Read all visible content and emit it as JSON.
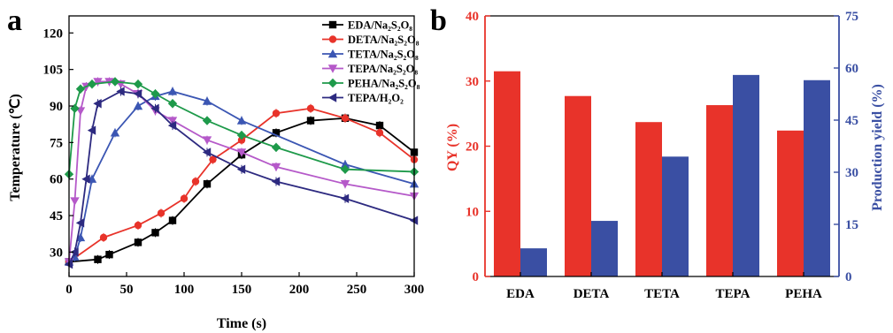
{
  "panels": {
    "a": "a",
    "b": "b"
  },
  "chart_data": [
    {
      "type": "line",
      "panel": "a",
      "xlabel": "Time (s)",
      "ylabel": "Temperature (℃)",
      "xlim": [
        0,
        300
      ],
      "ylim": [
        20,
        127
      ],
      "xticks": [
        "0",
        "50",
        "100",
        "150",
        "200",
        "250",
        "300"
      ],
      "yticks": [
        "30",
        "45",
        "60",
        "75",
        "90",
        "105",
        "120"
      ],
      "legend_position": "top-right",
      "series": [
        {
          "name": "EDA/Na₂S₂O₈",
          "color": "#000000",
          "marker": "square",
          "x": [
            0,
            25,
            35,
            60,
            75,
            90,
            120,
            150,
            180,
            210,
            240,
            270,
            300
          ],
          "y": [
            26,
            27,
            29,
            34,
            38,
            43,
            58,
            70,
            79,
            84,
            85,
            82,
            71
          ]
        },
        {
          "name": "DETA/Na₂S₂O₈",
          "color": "#e8332a",
          "marker": "circle",
          "x": [
            0,
            30,
            60,
            80,
            100,
            110,
            125,
            150,
            180,
            210,
            240,
            270,
            300
          ],
          "y": [
            26,
            36,
            41,
            46,
            52,
            59,
            68,
            76,
            87,
            89,
            85,
            79,
            68
          ]
        },
        {
          "name": "TETA/Na₂S₂O₈",
          "color": "#3b56b3",
          "marker": "triangle-up",
          "x": [
            0,
            5,
            10,
            20,
            40,
            60,
            75,
            90,
            120,
            150,
            240,
            300
          ],
          "y": [
            26,
            28,
            36,
            60,
            79,
            90,
            94,
            96,
            92,
            84,
            66,
            58
          ]
        },
        {
          "name": "TEPA/Na₂S₂O₈",
          "color": "#b559c9",
          "marker": "triangle-down",
          "x": [
            0,
            5,
            10,
            15,
            25,
            35,
            45,
            60,
            75,
            90,
            120,
            150,
            180,
            240,
            300
          ],
          "y": [
            26,
            51,
            88,
            98,
            100,
            100,
            99,
            95,
            88,
            84,
            76,
            71,
            65,
            58,
            53
          ]
        },
        {
          "name": "PEHA/Na₂S₂O₈",
          "color": "#1e9a4a",
          "marker": "diamond",
          "x": [
            0,
            5,
            10,
            20,
            40,
            60,
            75,
            90,
            120,
            150,
            180,
            240,
            300
          ],
          "y": [
            62,
            89,
            97,
            99,
            100,
            99,
            95,
            91,
            84,
            78,
            73,
            64,
            63
          ]
        },
        {
          "name": "TEPA/H₂O₂",
          "color": "#2d2a80",
          "marker": "triangle-left",
          "x": [
            0,
            5,
            10,
            15,
            20,
            25,
            45,
            60,
            75,
            90,
            120,
            150,
            180,
            240,
            300
          ],
          "y": [
            25,
            30,
            42,
            60,
            80,
            91,
            96,
            95,
            89,
            82,
            71,
            64,
            59,
            52,
            43
          ]
        }
      ]
    },
    {
      "type": "bar",
      "panel": "b",
      "categories": [
        "EDA",
        "DETA",
        "TETA",
        "TEPA",
        "PEHA"
      ],
      "ylabel_left": "QY (%)",
      "ylabel_right": "Production yield (%)",
      "ylim_left": [
        0,
        40
      ],
      "ylim_right": [
        0,
        75
      ],
      "yticks_left": [
        "0",
        "10",
        "20",
        "30",
        "40"
      ],
      "yticks_right": [
        "0",
        "15",
        "30",
        "45",
        "60",
        "75"
      ],
      "series": [
        {
          "axis": "left",
          "color": "#e8332a",
          "values": [
            31.5,
            27.7,
            23.7,
            26.3,
            22.4
          ]
        },
        {
          "axis": "right",
          "color": "#3a4fa3",
          "values": [
            8.1,
            16.0,
            34.5,
            58.0,
            56.5
          ]
        }
      ]
    }
  ]
}
